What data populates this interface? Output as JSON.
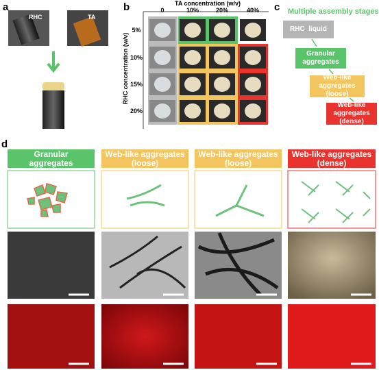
{
  "panel_a": {
    "label": "a",
    "vials": [
      "RHC",
      "TA"
    ]
  },
  "panel_b": {
    "label": "b",
    "x_title": "TA concentration (w/v)",
    "columns": [
      "0",
      "10%",
      "20%",
      "40%"
    ],
    "y_title": "RHC concentration (w/v)",
    "rows": [
      "5%",
      "10%",
      "15%",
      "20%"
    ]
  },
  "panel_c": {
    "label": "c",
    "title": "Multiple assembly stages",
    "stages": [
      "RHC  liquid",
      "Granular aggregates",
      "Web-like aggregates (loose)",
      "Web-like aggregates (dense)"
    ]
  },
  "panel_d": {
    "label": "d",
    "headers": [
      "Granular aggregates",
      "Web-like aggregates (loose)",
      "Web-like aggregates (loose)",
      "Web-like aggregates (dense)"
    ]
  }
}
